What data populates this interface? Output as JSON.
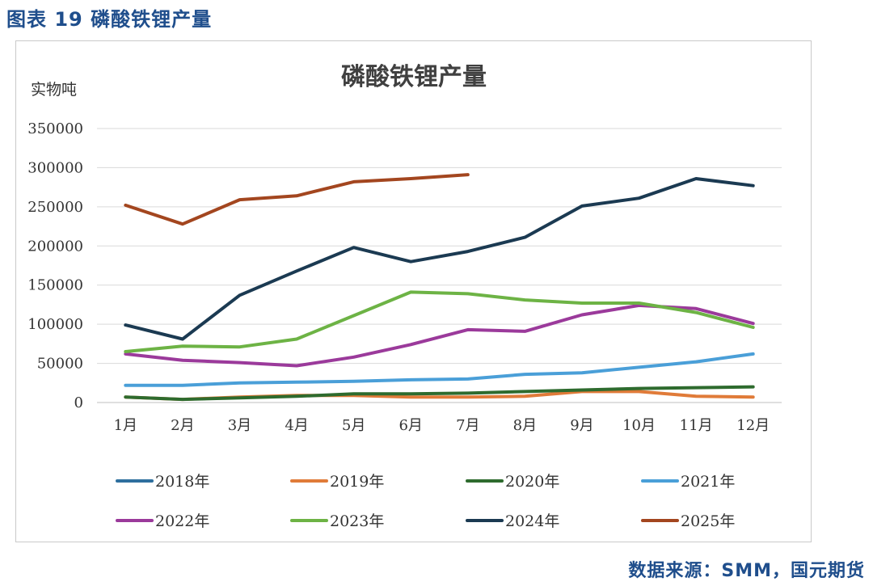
{
  "figure": {
    "title": "图表 19 磷酸铁锂产量",
    "source": "数据来源：SMM，国元期货"
  },
  "chart_data": {
    "type": "line",
    "title": "磷酸铁锂产量",
    "ylabel": "实物吨",
    "xlabel": "",
    "ylim": [
      0,
      350000
    ],
    "yticks": [
      0,
      50000,
      100000,
      150000,
      200000,
      250000,
      300000,
      350000
    ],
    "grid": true,
    "legend": "bottom",
    "categories": [
      "1月",
      "2月",
      "3月",
      "4月",
      "5月",
      "6月",
      "7月",
      "8月",
      "9月",
      "10月",
      "11月",
      "12月"
    ],
    "series": [
      {
        "name": "2018年",
        "color": "#2e6f9e",
        "values": [
          null,
          null,
          null,
          null,
          null,
          null,
          null,
          null,
          null,
          null,
          null,
          null
        ]
      },
      {
        "name": "2019年",
        "color": "#e07b39",
        "values": [
          7000,
          4000,
          7000,
          9000,
          9000,
          7000,
          7000,
          8000,
          14000,
          14000,
          8000,
          7000
        ]
      },
      {
        "name": "2020年",
        "color": "#2e6b2e",
        "values": [
          7000,
          4000,
          6000,
          8000,
          11000,
          11000,
          12000,
          14000,
          16000,
          18000,
          19000,
          20000
        ]
      },
      {
        "name": "2021年",
        "color": "#4a9fd8",
        "values": [
          22000,
          22000,
          25000,
          26000,
          27000,
          29000,
          30000,
          36000,
          38000,
          45000,
          52000,
          62000
        ]
      },
      {
        "name": "2022年",
        "color": "#9b3a9b",
        "values": [
          62000,
          54000,
          51000,
          47000,
          58000,
          74000,
          93000,
          91000,
          112000,
          124000,
          120000,
          101000
        ]
      },
      {
        "name": "2023年",
        "color": "#6db345",
        "values": [
          65000,
          72000,
          71000,
          81000,
          111000,
          141000,
          139000,
          131000,
          127000,
          127000,
          115000,
          96000
        ]
      },
      {
        "name": "2024年",
        "color": "#1b3a52",
        "values": [
          99000,
          81000,
          137000,
          168000,
          198000,
          180000,
          193000,
          211000,
          251000,
          261000,
          286000,
          277000
        ]
      },
      {
        "name": "2025年",
        "color": "#a3461f",
        "values": [
          252000,
          228000,
          259000,
          264000,
          282000,
          286000,
          291000,
          null,
          null,
          null,
          null,
          null
        ]
      }
    ]
  }
}
